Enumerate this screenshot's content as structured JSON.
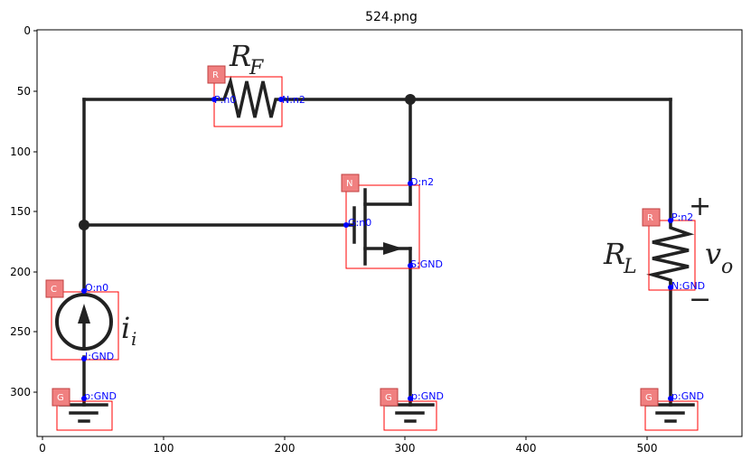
{
  "title": "524.png",
  "x_ticks": [
    "0",
    "100",
    "200",
    "300",
    "400",
    "500"
  ],
  "y_ticks": [
    "0",
    "50",
    "100",
    "150",
    "200",
    "250",
    "300"
  ],
  "math_labels": {
    "rf_main": "R",
    "rf_sub": "F",
    "rl_main": "R",
    "rl_sub": "L",
    "vo_main": "v",
    "vo_sub": "o",
    "ii_main": "i",
    "ii_sub": "i",
    "plus": "+",
    "minus": "−"
  },
  "components": [
    {
      "id": "rf",
      "badge": "R",
      "pins": [
        "P:n0",
        "N:n2"
      ]
    },
    {
      "id": "mosfet",
      "badge": "N",
      "pins": [
        "D:n2",
        "G:n0",
        "S:GND"
      ]
    },
    {
      "id": "rl",
      "badge": "R",
      "pins": [
        "P:n2",
        "N:GND"
      ]
    },
    {
      "id": "isrc",
      "badge": "C",
      "pins": [
        "O:n0",
        "I:GND"
      ]
    },
    {
      "id": "gnd1",
      "badge": "G",
      "pins": [
        "p:GND"
      ]
    },
    {
      "id": "gnd2",
      "badge": "G",
      "pins": [
        "p:GND"
      ]
    },
    {
      "id": "gnd3",
      "badge": "G",
      "pins": [
        "p:GND"
      ]
    }
  ]
}
